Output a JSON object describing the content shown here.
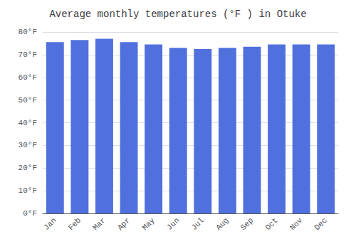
{
  "chart_data": {
    "type": "bar",
    "title": "Average monthly temperatures (°F ) in Otuke",
    "categories": [
      "Jan",
      "Feb",
      "Mar",
      "Apr",
      "May",
      "Jun",
      "Jul",
      "Aug",
      "Sep",
      "Oct",
      "Nov",
      "Dec"
    ],
    "values": [
      75.5,
      76.5,
      77.0,
      75.5,
      74.5,
      73.0,
      72.5,
      73.0,
      73.5,
      74.5,
      74.5,
      74.5
    ],
    "ylim": [
      0,
      80
    ],
    "yticks": [
      {
        "value": 0,
        "label": "0°F"
      },
      {
        "value": 10,
        "label": "10°F"
      },
      {
        "value": 20,
        "label": "20°F"
      },
      {
        "value": 30,
        "label": "30°F"
      },
      {
        "value": 40,
        "label": "40°F"
      },
      {
        "value": 50,
        "label": "50°F"
      },
      {
        "value": 60,
        "label": "60°F"
      },
      {
        "value": 70,
        "label": "70°F"
      },
      {
        "value": 80,
        "label": "80°F"
      }
    ],
    "grid": true
  }
}
